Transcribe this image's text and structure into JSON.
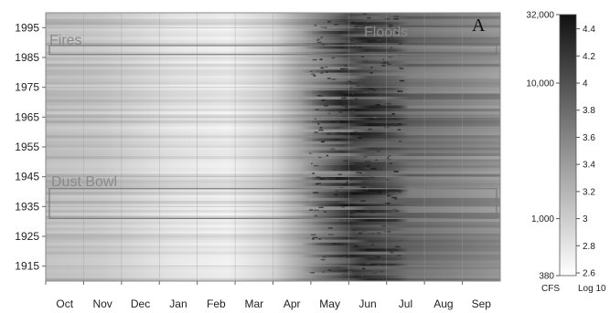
{
  "chart_data": {
    "type": "heatmap",
    "panel_label": "A",
    "x_ticks": [
      "Oct",
      "Nov",
      "Dec",
      "Jan",
      "Feb",
      "Mar",
      "Apr",
      "May",
      "Jun",
      "Jul",
      "Aug",
      "Sep"
    ],
    "y_ticks": [
      "1995",
      "1985",
      "1975",
      "1965",
      "1955",
      "1945",
      "1935",
      "1925",
      "1915"
    ],
    "y_tick_values": [
      1995,
      1985,
      1975,
      1965,
      1955,
      1945,
      1935,
      1925,
      1915
    ],
    "ylim": [
      1910,
      2000
    ],
    "grid": true,
    "annotations": [
      {
        "text": "Fires",
        "years": [
          1986,
          1989
        ]
      },
      {
        "text": "Floods",
        "years": null
      },
      {
        "text": "Dust Bowl",
        "years": [
          1931,
          1941
        ]
      }
    ],
    "colorbar": {
      "cfs_ticks": [
        "32,000",
        "10,000",
        "1,000",
        "380"
      ],
      "cfs_values": [
        32000,
        10000,
        1000,
        380
      ],
      "log_ticks": [
        "4.4",
        "4.2",
        "4",
        "3.8",
        "3.6",
        "3.4",
        "3.2",
        "3",
        "2.8",
        "2.6"
      ],
      "log_values": [
        4.4,
        4.2,
        4.0,
        3.8,
        3.6,
        3.4,
        3.2,
        3.0,
        2.8,
        2.6
      ],
      "range_log10": [
        2.58,
        4.505
      ],
      "left_unit": "CFS",
      "right_unit": "Log 10",
      "colors": {
        "low": "#ffffff",
        "high": "#111111"
      }
    }
  }
}
